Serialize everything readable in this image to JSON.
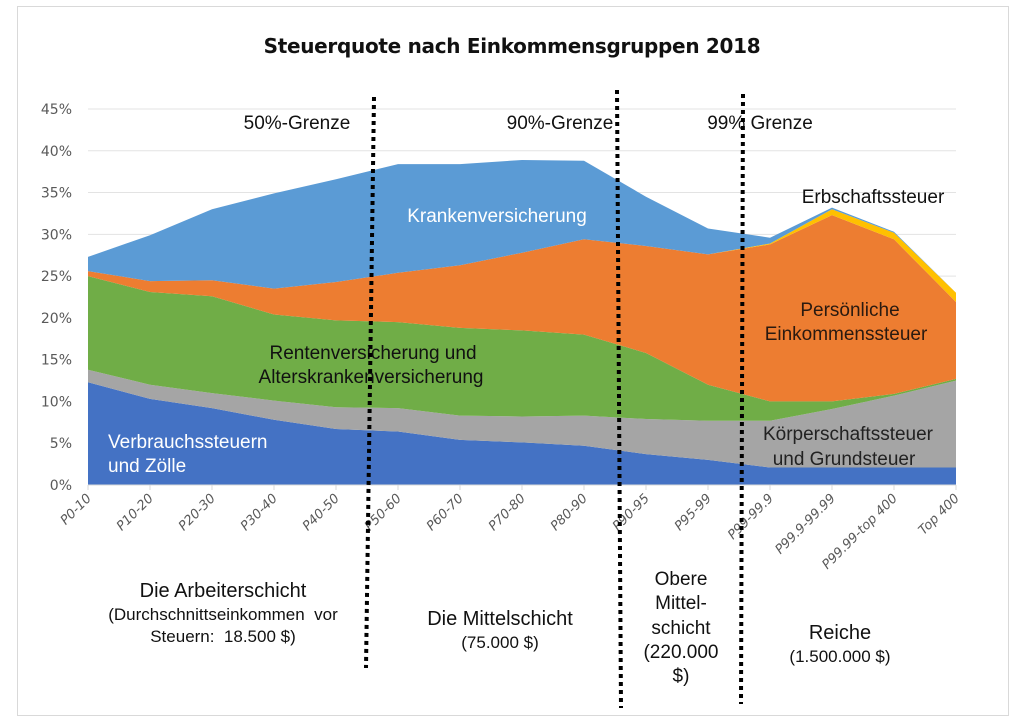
{
  "chart_data": {
    "type": "area",
    "stacked": true,
    "title": "Steuerquote nach Einkommensgruppen 2018",
    "xlabel": "",
    "ylabel": "",
    "ylim": [
      0,
      45
    ],
    "yticks": [
      "0%",
      "5%",
      "10%",
      "15%",
      "20%",
      "25%",
      "30%",
      "35%",
      "40%",
      "45%"
    ],
    "ytick_values": [
      0,
      5,
      10,
      15,
      20,
      25,
      30,
      35,
      40,
      45
    ],
    "grid": true,
    "categories": [
      "P0-10",
      "P10-20",
      "P20-30",
      "P30-40",
      "P40-50",
      "P50-60",
      "P60-70",
      "P70-80",
      "P80-90",
      "P90-95",
      "P95-99",
      "P99-99.9",
      "P99.9-99.99",
      "P99.99-top 400",
      "Top 400"
    ],
    "series": [
      {
        "name": "Verbrauchssteuern und Zölle",
        "color": "#4472c4",
        "values": [
          12.3,
          10.3,
          9.2,
          7.8,
          6.7,
          6.4,
          5.4,
          5.1,
          4.7,
          3.7,
          3.0,
          2.1,
          2.1,
          2.1,
          2.1
        ]
      },
      {
        "name": "Körperschaftssteuer und Grundsteuer",
        "color": "#a5a5a5",
        "values": [
          1.5,
          1.7,
          1.8,
          2.3,
          2.6,
          2.8,
          2.9,
          3.1,
          3.6,
          4.2,
          4.7,
          5.6,
          7.0,
          8.6,
          10.4
        ]
      },
      {
        "name": "Rentenversicherung und Alterskrankenversicherung",
        "color": "#70ad47",
        "values": [
          11.2,
          11.1,
          11.6,
          10.3,
          10.4,
          10.3,
          10.5,
          10.3,
          9.7,
          7.9,
          4.3,
          2.3,
          0.9,
          0.2,
          0.2
        ]
      },
      {
        "name": "Persönliche Einkommenssteuer",
        "color": "#ed7d31",
        "values": [
          0.6,
          1.3,
          1.9,
          3.1,
          4.6,
          5.9,
          7.5,
          9.3,
          11.4,
          12.8,
          15.6,
          18.8,
          22.3,
          18.5,
          9.2
        ]
      },
      {
        "name": "Erbschaftssteuer",
        "color": "#ffc000",
        "values": [
          0,
          0,
          0,
          0,
          0,
          0,
          0,
          0,
          0,
          0,
          0,
          0.1,
          0.7,
          0.8,
          1.1
        ]
      },
      {
        "name": "Krankenversicherung",
        "color": "#5b9bd5",
        "values": [
          1.7,
          5.5,
          8.5,
          11.4,
          12.3,
          13.0,
          12.1,
          11.1,
          9.4,
          5.9,
          3.1,
          0.7,
          0.2,
          0.1,
          0.0
        ]
      }
    ],
    "annotations": {
      "thresholds": [
        {
          "label": "50%-Grenze",
          "between": [
            "P40-50",
            "P50-60"
          ]
        },
        {
          "label": "90%-Grenze",
          "between": [
            "P80-90",
            "P90-95"
          ]
        },
        {
          "label": "99% Grenze",
          "between": [
            "P95-99",
            "P99-99.9"
          ]
        }
      ],
      "series_labels": [
        {
          "text": "Krankenversicherung",
          "color": "#ffffff"
        },
        {
          "text": "Erbschaftssteuer",
          "color": "#111111"
        },
        {
          "text": "Persönliche",
          "color": "#2a1a10"
        },
        {
          "text": "Einkommenssteuer",
          "color": "#2a1a10"
        },
        {
          "text": "Rentenversicherung  und",
          "color": "#111111"
        },
        {
          "text": "Alterskrankenversicherung",
          "color": "#111111"
        },
        {
          "text": "Verbrauchssteuern",
          "color": "#ffffff"
        },
        {
          "text": "und  Zölle",
          "color": "#ffffff"
        },
        {
          "text": "Körperschaftssteuer",
          "color": "#222222"
        },
        {
          "text": "und  Grundsteuer",
          "color": "#222222"
        }
      ],
      "groups": [
        {
          "lines": [
            "Die Arbeiterschicht",
            "(Durchschnittseinkommen  vor",
            "Steuern:  18.500 $)"
          ]
        },
        {
          "lines": [
            "Die Mittelschicht",
            "(75.000 $)"
          ]
        },
        {
          "lines": [
            "Obere",
            "Mittel-",
            "schicht",
            "(220.000",
            "$)"
          ]
        },
        {
          "lines": [
            "Reiche",
            "(1.500.000 $)"
          ]
        }
      ]
    }
  }
}
